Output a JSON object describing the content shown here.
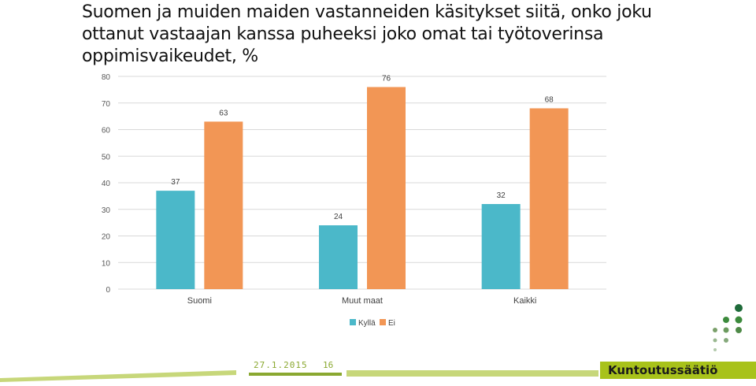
{
  "slide": {
    "title": "Suomen ja muiden maiden vastanneiden käsitykset siitä, onko joku ottanut vastaajan kanssa puheeksi joko omat tai työtoverinsa oppimisvaikeudet, %",
    "footer_date": "27.1.2015",
    "page_number": "16",
    "brand": "Kuntoutussäätiö",
    "colors": {
      "kylla": "#4bb8c9",
      "ei": "#f29655",
      "grid": "#d9d9d9",
      "footer_green": "#8aa830",
      "brand_green": "#a8c21a",
      "logo_green": "#3c8a3c"
    }
  },
  "chart_data": {
    "type": "bar",
    "title": "",
    "xlabel": "",
    "ylabel": "",
    "categories": [
      "Suomi",
      "Muut maat",
      "Kaikki"
    ],
    "series": [
      {
        "name": "Kyllä",
        "values": [
          37,
          24,
          32
        ]
      },
      {
        "name": "Ei",
        "values": [
          63,
          76,
          68
        ]
      }
    ],
    "ylim": [
      0,
      80
    ],
    "yticks": [
      0,
      10,
      20,
      30,
      40,
      50,
      60,
      70,
      80
    ],
    "grid": true,
    "legend": "bottom",
    "data_labels": true
  }
}
